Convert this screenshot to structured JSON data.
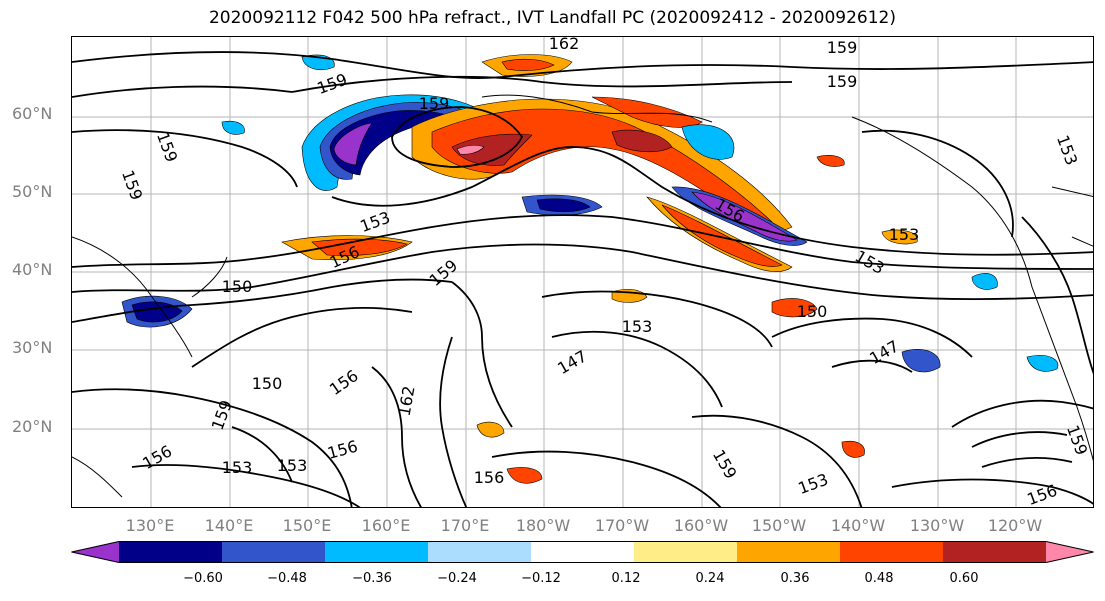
{
  "title": "2020092112 F042 500 hPa refract., IVT Landfall PC (2020092412 - 2020092612)",
  "lat_labels": [
    "60°N",
    "50°N",
    "40°N",
    "30°N",
    "20°N"
  ],
  "lon_labels": [
    "130°E",
    "140°E",
    "150°E",
    "160°E",
    "170°E",
    "180°W",
    "170°W",
    "160°W",
    "150°W",
    "140°W",
    "130°W",
    "120°W"
  ],
  "contour_labels": [
    "162",
    "159",
    "159",
    "159",
    "159",
    "159",
    "156",
    "159",
    "153",
    "156",
    "153",
    "159",
    "153",
    "150",
    "150",
    "153",
    "147",
    "147",
    "150",
    "156",
    "159",
    "162",
    "153",
    "153",
    "156",
    "156",
    "156",
    "159",
    "153",
    "156",
    "159",
    "153"
  ],
  "colorbar": {
    "colors": [
      "#9933cc",
      "#000088",
      "#3355cc",
      "#00bbff",
      "#aaddff",
      "#ffffff",
      "#ffee88",
      "#ffa500",
      "#ff4400",
      "#b22222",
      "#ff88aa"
    ],
    "ticks": [
      "−0.60",
      "−0.48",
      "−0.36",
      "−0.24",
      "−0.12",
      "0.12",
      "0.24",
      "0.36",
      "0.48",
      "0.60"
    ],
    "extend": "both"
  }
}
